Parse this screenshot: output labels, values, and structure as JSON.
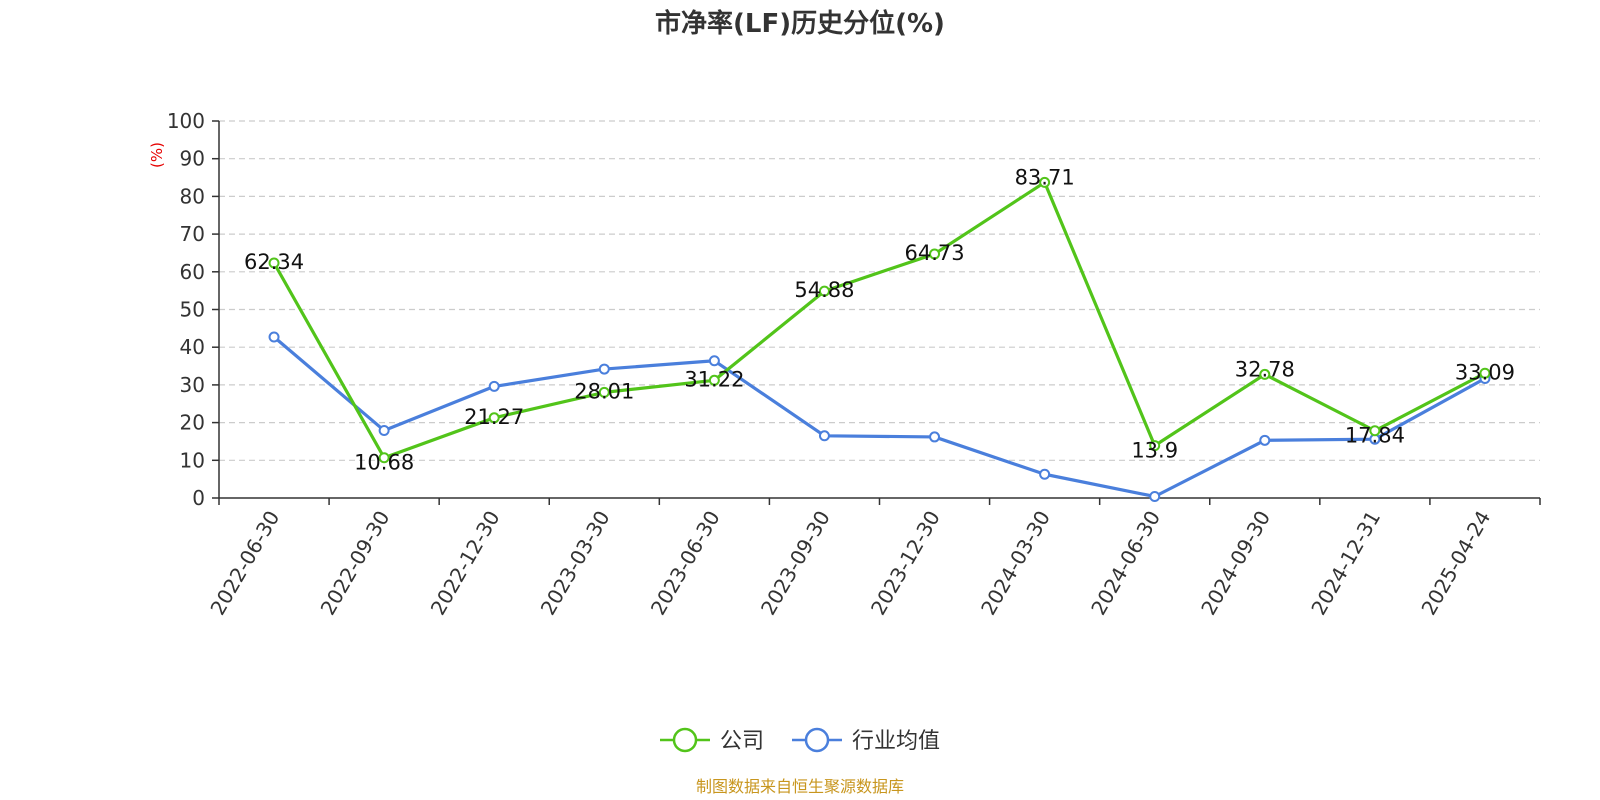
{
  "chart_data": {
    "type": "line",
    "title": "市净率(LF)历史分位(%)",
    "ylabel": "(%)",
    "ylim": [
      0,
      100
    ],
    "yticks": [
      0,
      10,
      20,
      30,
      40,
      50,
      60,
      70,
      80,
      90,
      100
    ],
    "grid": true,
    "legend_position": "bottom",
    "x": [
      "2022-06-30",
      "2022-09-30",
      "2022-12-30",
      "2023-03-30",
      "2023-06-30",
      "2023-09-30",
      "2023-12-30",
      "2024-03-30",
      "2024-06-30",
      "2024-09-30",
      "2024-12-31",
      "2025-04-24"
    ],
    "series": [
      {
        "name": "公司",
        "color": "#52c41a",
        "show_labels": true,
        "values": [
          62.34,
          10.68,
          21.27,
          28.01,
          31.22,
          54.88,
          64.73,
          83.71,
          13.9,
          32.78,
          17.84,
          33.09
        ]
      },
      {
        "name": "行业均值",
        "color": "#4a7fdc",
        "show_labels": false,
        "values": [
          42.7,
          17.9,
          29.6,
          34.2,
          36.4,
          16.5,
          16.2,
          6.3,
          0.4,
          15.3,
          15.6,
          31.7
        ]
      }
    ]
  },
  "source_text": "制图数据来自恒生聚源数据库"
}
